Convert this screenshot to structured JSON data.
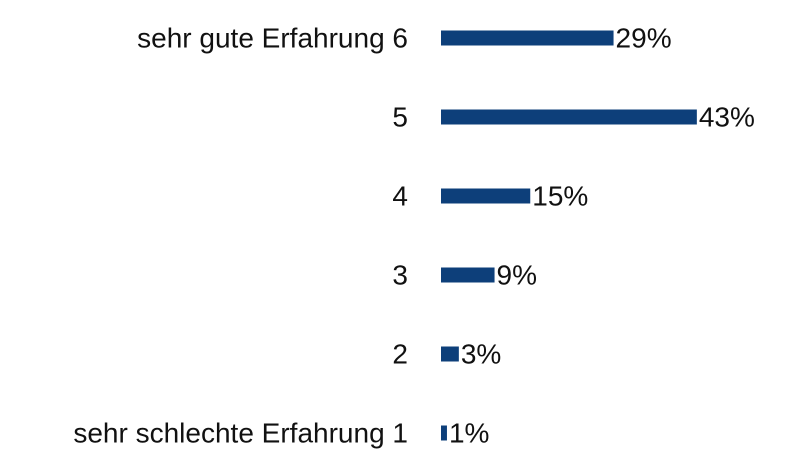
{
  "chart_data": {
    "type": "bar",
    "orientation": "horizontal",
    "categories": [
      "sehr gute Erfahrung 6",
      "5",
      "4",
      "3",
      "2",
      "sehr schlechte Erfahrung 1"
    ],
    "values": [
      29,
      43,
      15,
      9,
      3,
      1
    ],
    "value_labels": [
      "29%",
      "43%",
      "15%",
      "9%",
      "3%",
      "1%"
    ],
    "color": "#0d3f7a"
  }
}
